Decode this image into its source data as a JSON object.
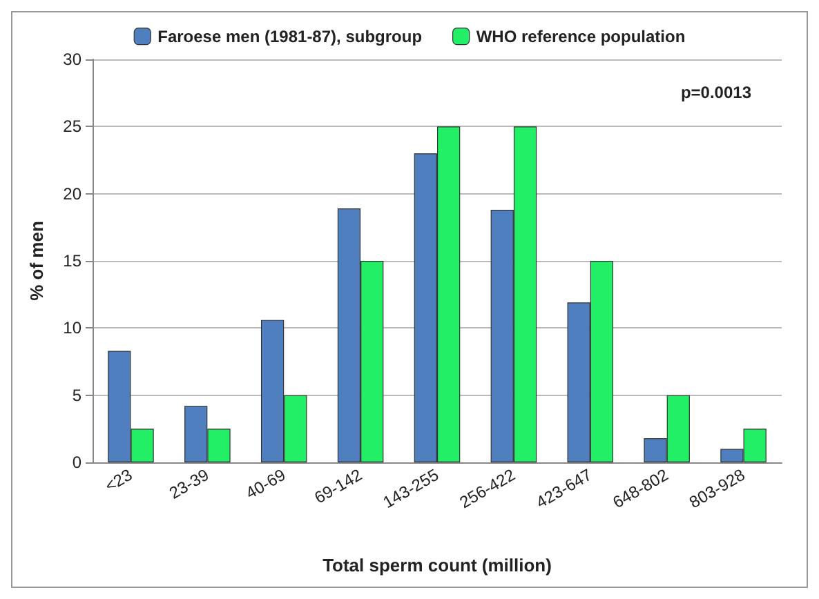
{
  "chart_data": {
    "type": "bar",
    "xlabel": "Total sperm count (million)",
    "ylabel": "% of men",
    "categories": [
      "<23",
      "23-39",
      "40-69",
      "69-142",
      "143-255",
      "256-422",
      "423-647",
      "648-802",
      "803-928"
    ],
    "series": [
      {
        "name": "Faroese men (1981-87), subgroup",
        "color": "#4f7fbf",
        "values": [
          8.3,
          4.2,
          10.6,
          18.9,
          23,
          18.8,
          11.9,
          1.8,
          1
        ]
      },
      {
        "name": "WHO reference population",
        "color": "#22ee66",
        "values": [
          2.5,
          2.5,
          5,
          15,
          25,
          25,
          15,
          5,
          2.5
        ]
      }
    ],
    "ylim": [
      0,
      30
    ],
    "yticks": [
      0,
      5,
      10,
      15,
      20,
      25,
      30
    ],
    "grid": "y",
    "legend": "top",
    "annotations": [
      "p=0.0013"
    ]
  }
}
